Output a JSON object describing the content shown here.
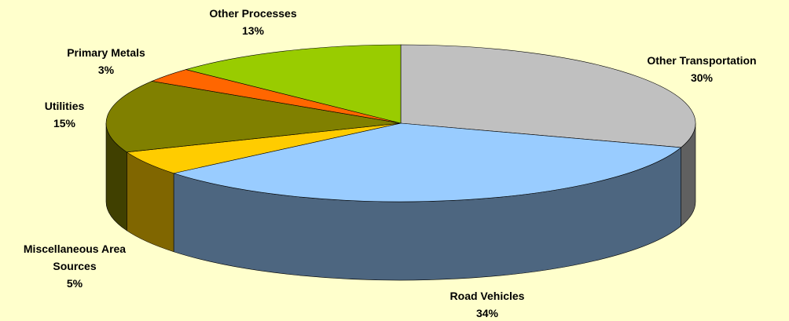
{
  "chart_data": {
    "type": "pie3d",
    "categories": [
      "Other Transportation",
      "Road Vehicles",
      "Miscellaneous Area Sources",
      "Utilities",
      "Primary Metals",
      "Other Processes"
    ],
    "values": [
      30,
      34,
      5,
      15,
      3,
      13
    ],
    "value_labels": [
      "30%",
      "34%",
      "5%",
      "15%",
      "3%",
      "13%"
    ],
    "colors": [
      "#c0c0c0",
      "#99ccff",
      "#ffcc00",
      "#808000",
      "#ff6600",
      "#99cc00"
    ]
  }
}
